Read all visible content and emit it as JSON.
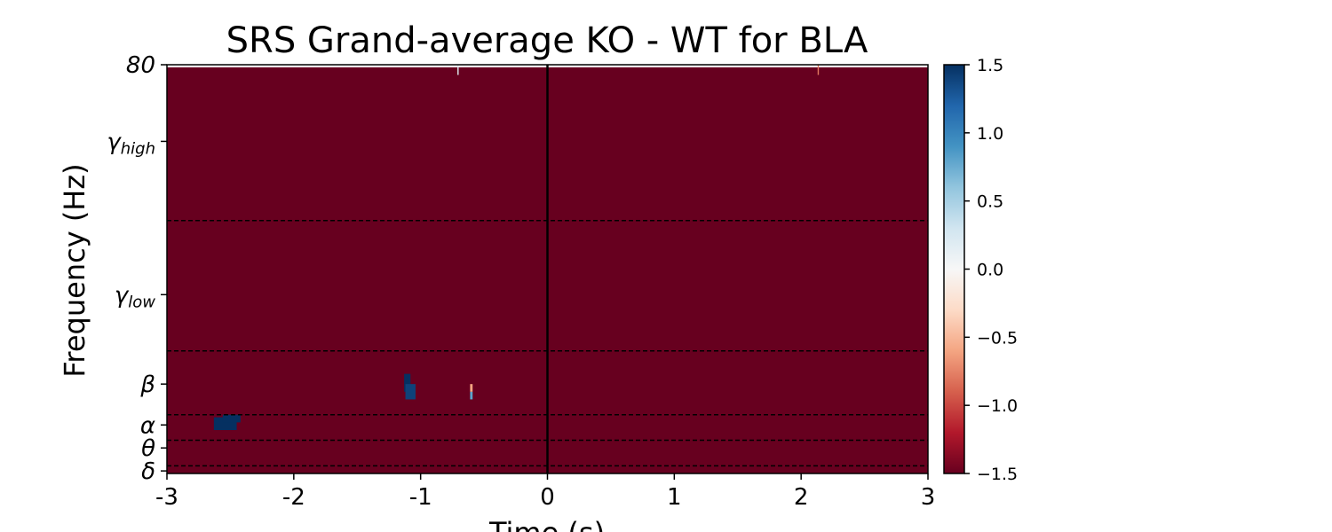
{
  "chart_data": {
    "type": "heatmap",
    "title": "SRS Grand-average KO - WT for BLA",
    "xlabel": "Time (s)",
    "ylabel": "Frequency (Hz)",
    "xlim": [
      -3,
      3
    ],
    "ylim": [
      0,
      80
    ],
    "x_ticks": [
      {
        "value": -3,
        "label": "-3"
      },
      {
        "value": -2,
        "label": "-2"
      },
      {
        "value": -1,
        "label": "-1"
      },
      {
        "value": 0,
        "label": "0"
      },
      {
        "value": 1,
        "label": "1"
      },
      {
        "value": 2,
        "label": "2"
      },
      {
        "value": 3,
        "label": "3"
      }
    ],
    "y_ticks": [
      {
        "value": 80,
        "label": "80",
        "sub": ""
      },
      {
        "value": 65,
        "label": "γ",
        "sub": "high"
      },
      {
        "value": 35,
        "label": "γ",
        "sub": "low"
      },
      {
        "value": 17.5,
        "label": "β",
        "sub": ""
      },
      {
        "value": 9.5,
        "label": "α",
        "sub": ""
      },
      {
        "value": 5,
        "label": "θ",
        "sub": ""
      },
      {
        "value": 0.5,
        "label": "δ",
        "sub": ""
      }
    ],
    "band_boundaries": [
      1.5,
      6.5,
      11.5,
      24,
      49.5
    ],
    "event_line_x": 0,
    "background_value": -1.5,
    "patches": [
      {
        "t0": -2.63,
        "t1": -2.45,
        "f0": 8.5,
        "f1": 11,
        "value": 1.5
      },
      {
        "t0": -2.56,
        "t1": -2.42,
        "f0": 10,
        "f1": 11.5,
        "value": 1.5
      },
      {
        "t0": -1.13,
        "t1": -1.08,
        "f0": 16,
        "f1": 19.5,
        "value": 1.5
      },
      {
        "t0": -1.12,
        "t1": -1.04,
        "f0": 14.5,
        "f1": 17.5,
        "value": 1.4
      },
      {
        "t0": -0.61,
        "t1": -0.59,
        "f0": 14.5,
        "f1": 16,
        "value": 0.8
      },
      {
        "t0": -0.61,
        "t1": -0.59,
        "f0": 16,
        "f1": 17.5,
        "value": -0.6
      },
      {
        "t0": -0.71,
        "t1": -0.7,
        "f0": 78,
        "f1": 80,
        "value": 0.2
      },
      {
        "t0": 2.13,
        "t1": 2.14,
        "f0": 78,
        "f1": 80,
        "value": -0.8
      }
    ],
    "colorbar": {
      "colormap": "RdBu",
      "min": -1.5,
      "max": 1.5,
      "ticks": [
        {
          "value": 1.5,
          "label": "1.5"
        },
        {
          "value": 1.0,
          "label": "1.0"
        },
        {
          "value": 0.5,
          "label": "0.5"
        },
        {
          "value": 0.0,
          "label": "0.0"
        },
        {
          "value": -0.5,
          "label": "−0.5"
        },
        {
          "value": -1.0,
          "label": "−1.0"
        },
        {
          "value": -1.5,
          "label": "−1.5"
        }
      ]
    },
    "colors": {
      "background_cell": "#67001f",
      "positive_extreme": "#053061",
      "event_line": "#000000",
      "band_line": "#000000"
    }
  }
}
